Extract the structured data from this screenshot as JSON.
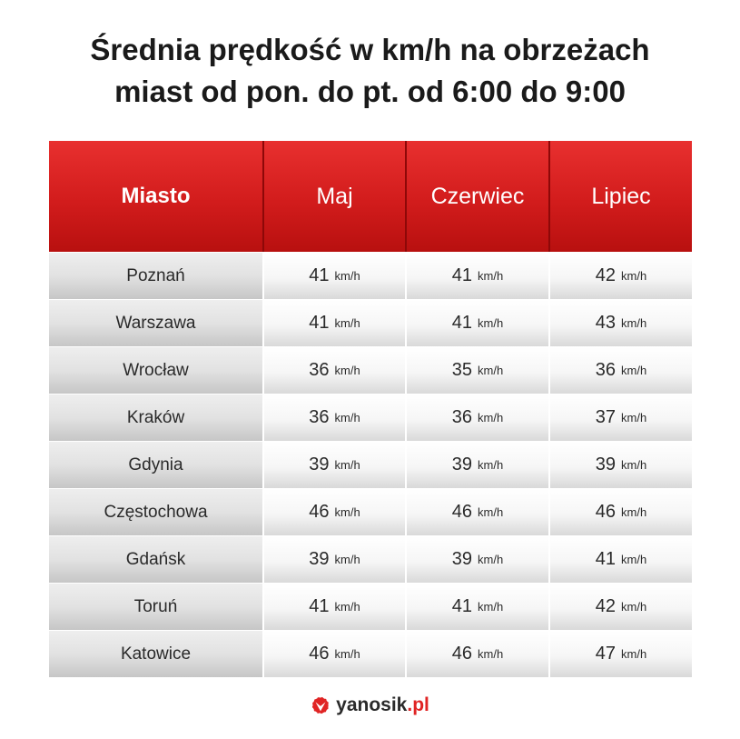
{
  "title": {
    "line1": "Średnia prędkość w km/h na obrzeżach",
    "line2": "miast od pon. do pt. od 6:00 do 9:00"
  },
  "chart_data": {
    "type": "table",
    "columns": [
      "Miasto",
      "Maj",
      "Czerwiec",
      "Lipiec"
    ],
    "unit": "km/h",
    "rows": [
      {
        "city": "Poznań",
        "values": [
          41,
          41,
          42
        ]
      },
      {
        "city": "Warszawa",
        "values": [
          41,
          41,
          43
        ]
      },
      {
        "city": "Wrocław",
        "values": [
          36,
          35,
          36
        ]
      },
      {
        "city": "Kraków",
        "values": [
          36,
          36,
          37
        ]
      },
      {
        "city": "Gdynia",
        "values": [
          39,
          39,
          39
        ]
      },
      {
        "city": "Częstochowa",
        "values": [
          46,
          46,
          46
        ]
      },
      {
        "city": "Gdańsk",
        "values": [
          39,
          39,
          41
        ]
      },
      {
        "city": "Toruń",
        "values": [
          41,
          41,
          42
        ]
      },
      {
        "city": "Katowice",
        "values": [
          46,
          46,
          47
        ]
      }
    ]
  },
  "logo": {
    "name": "yanosik",
    "tld": ".pl",
    "icon": "yanosik-logo-icon",
    "accent": "#e02424"
  },
  "colors": {
    "header_red": "#d21c1c",
    "city_cell": "#e2e2e2",
    "value_cell": "#f6f6f6"
  }
}
